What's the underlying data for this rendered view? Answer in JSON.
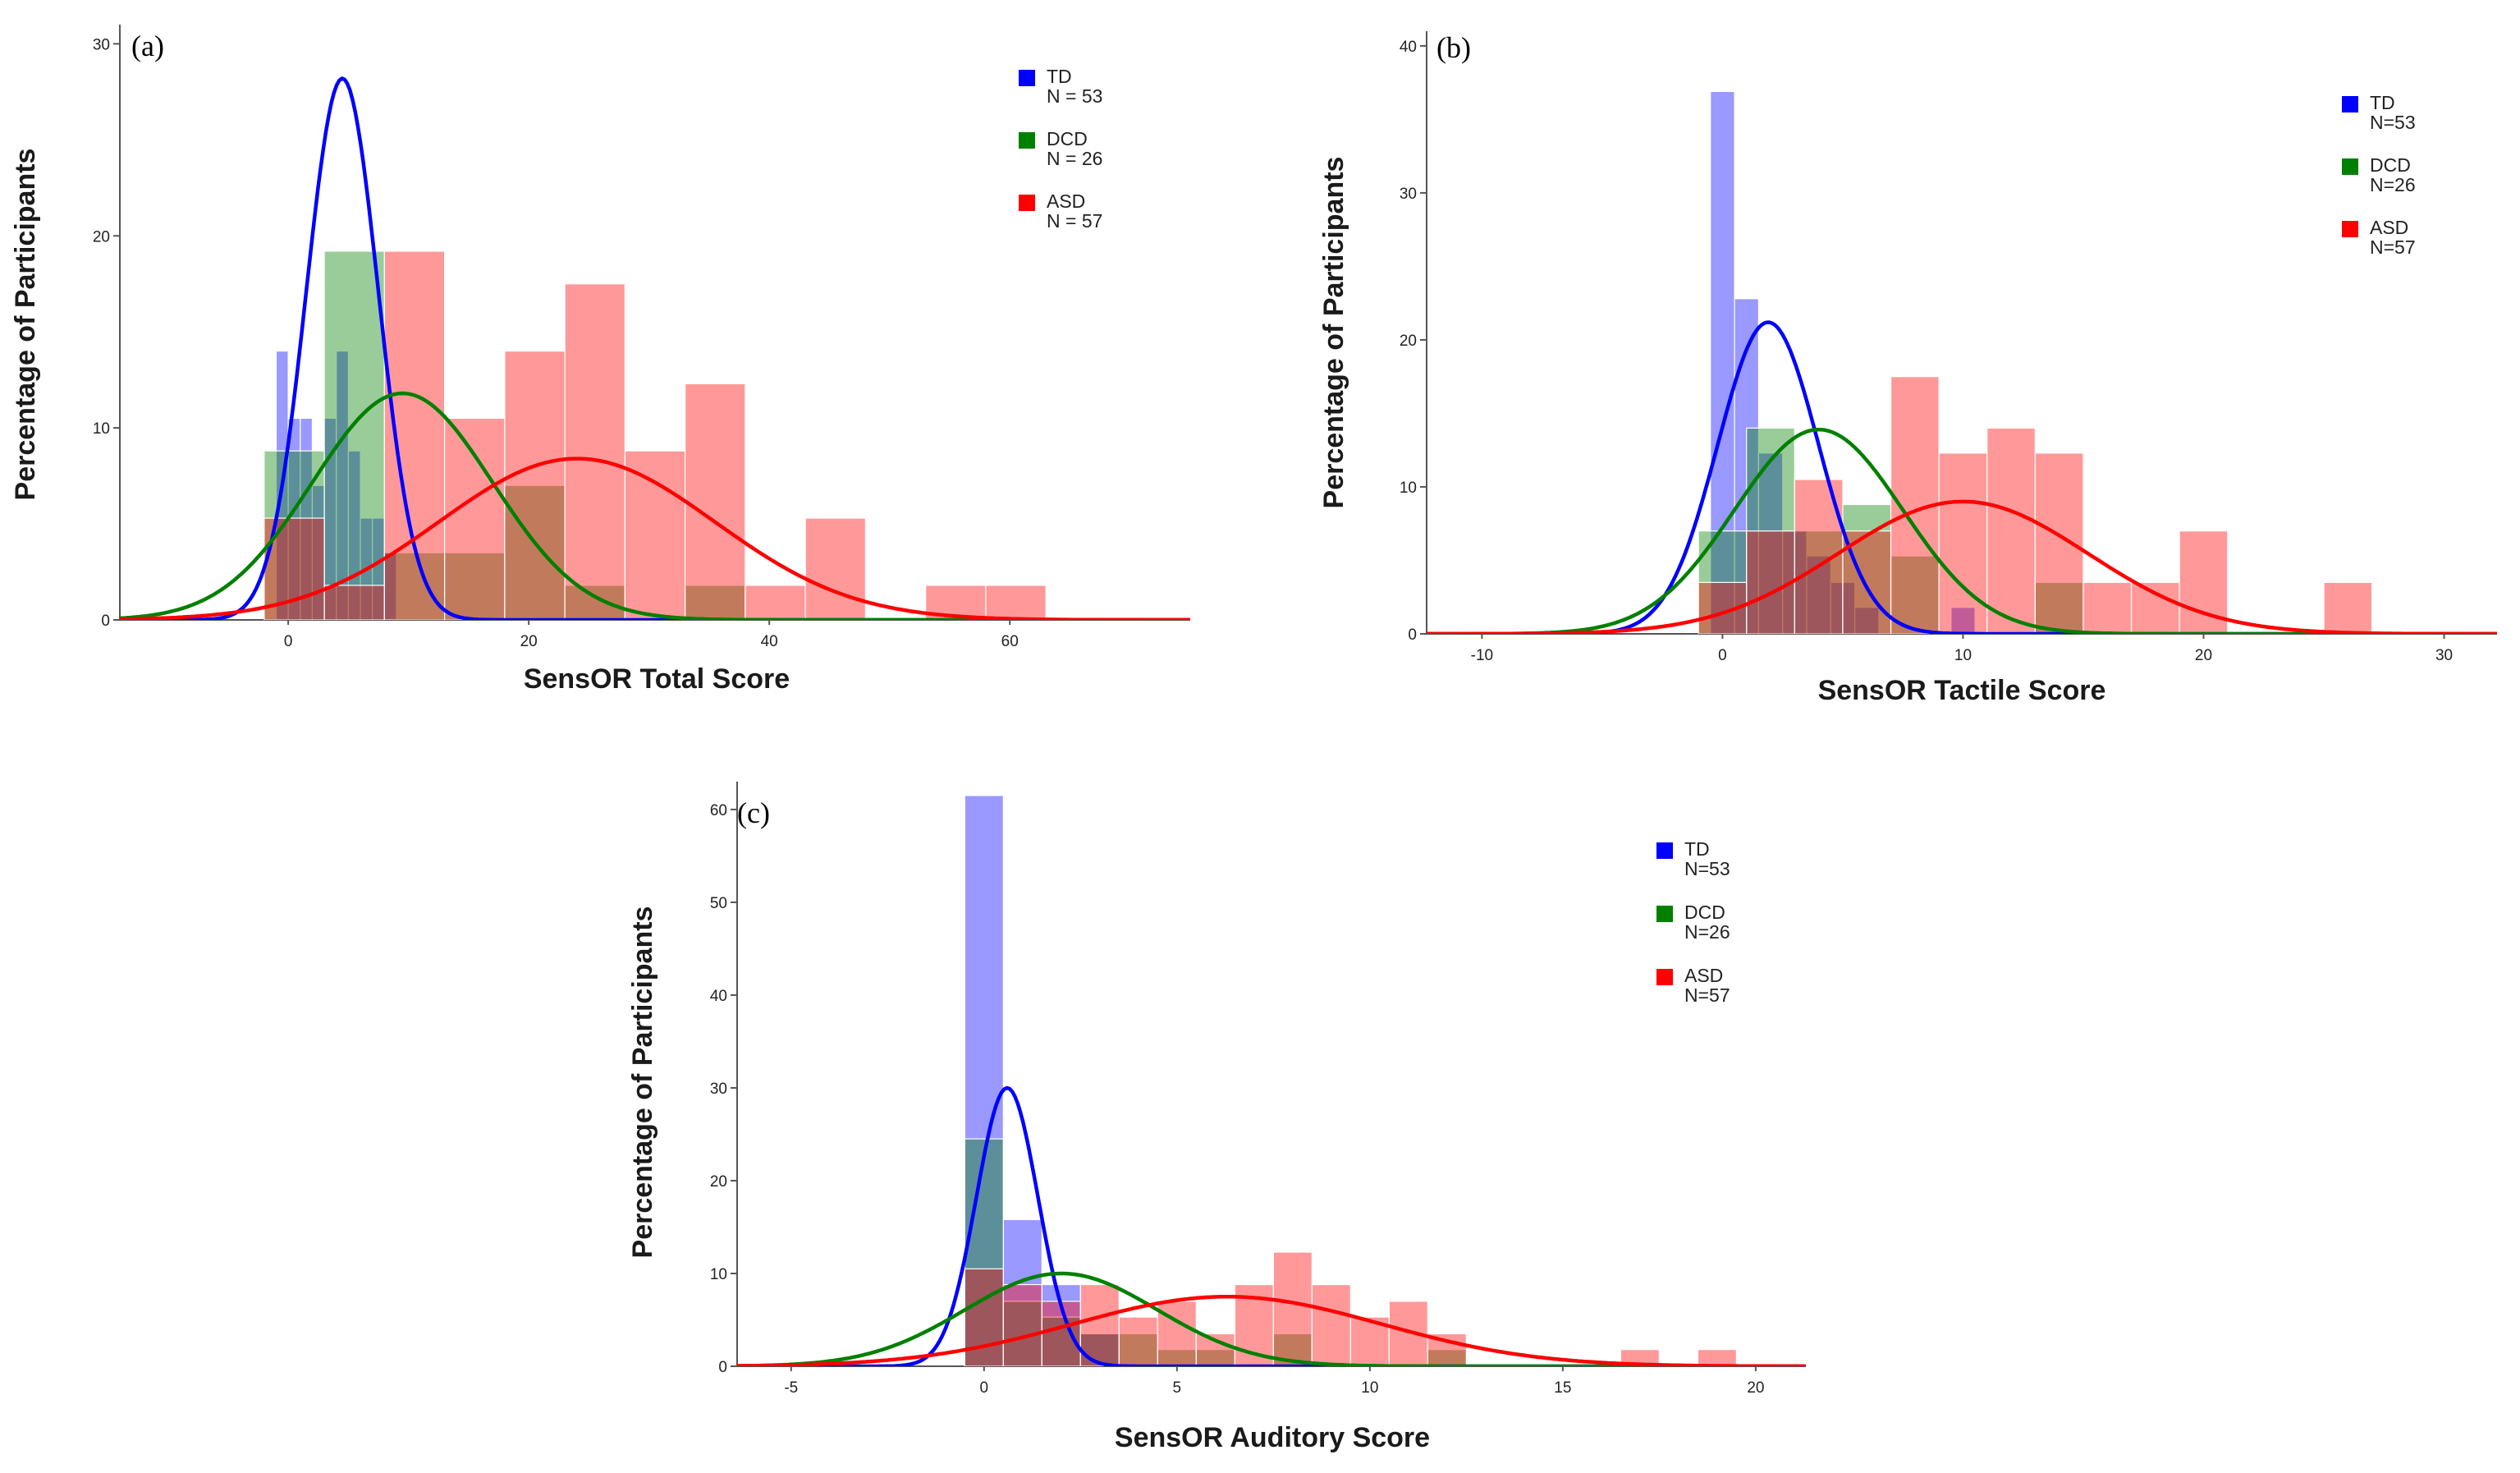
{
  "figure": {
    "colors": {
      "TD": "#0000ff",
      "DCD": "#008000",
      "ASD": "#ff0000"
    },
    "bar_opacity": 0.4
  },
  "chart_data": [
    {
      "type": "bar",
      "panel_label": "(a)",
      "title": "",
      "xlabel": "SensOR Total Score",
      "ylabel": "Percentage of Participants",
      "xlim": [
        -14,
        75
      ],
      "ylim": [
        0,
        31
      ],
      "xticks": [
        0,
        20,
        40,
        60
      ],
      "yticks": [
        0,
        10,
        20,
        30
      ],
      "legend_position": "top-right",
      "series": [
        {
          "name": "TD",
          "n_label": "N = 53",
          "bars": [
            [
              -1,
              1,
              14.0
            ],
            [
              0,
              1,
              10.5
            ],
            [
              1,
              1,
              10.5
            ],
            [
              2,
              1,
              7.0
            ],
            [
              3,
              1,
              10.5
            ],
            [
              4,
              1,
              14.0
            ],
            [
              5,
              1,
              8.8
            ],
            [
              6,
              1,
              5.3
            ],
            [
              7,
              1,
              5.3
            ],
            [
              8,
              1,
              3.5
            ]
          ],
          "curve": {
            "mean": 4.5,
            "sd": 3.0,
            "peak": 28.2
          }
        },
        {
          "name": "DCD",
          "n_label": "N = 26",
          "bars": [
            [
              -2,
              5,
              8.8
            ],
            [
              3,
              5,
              19.2
            ],
            [
              8,
              5,
              3.5
            ],
            [
              13,
              5,
              3.5
            ],
            [
              18,
              5,
              7.0
            ],
            [
              23,
              5,
              1.8
            ],
            [
              33,
              5,
              1.8
            ]
          ],
          "curve": {
            "mean": 9.5,
            "sd": 7.5,
            "peak": 11.8
          }
        },
        {
          "name": "ASD",
          "n_label": "N = 57",
          "bars": [
            [
              -2,
              5,
              5.3
            ],
            [
              3,
              5,
              1.8
            ],
            [
              8,
              5,
              19.2
            ],
            [
              13,
              5,
              10.5
            ],
            [
              18,
              5,
              14.0
            ],
            [
              23,
              5,
              17.5
            ],
            [
              28,
              5,
              8.8
            ],
            [
              33,
              5,
              12.3
            ],
            [
              38,
              5,
              1.8
            ],
            [
              43,
              5,
              5.3
            ],
            [
              53,
              5,
              1.8
            ],
            [
              58,
              5,
              1.8
            ]
          ],
          "curve": {
            "mean": 24.0,
            "sd": 11.5,
            "peak": 8.4
          }
        }
      ]
    },
    {
      "type": "bar",
      "panel_label": "(b)",
      "title": "",
      "xlabel": "SensOR Tactile Score",
      "ylabel": "Percentage of Participants",
      "xlim": [
        -12.3,
        32.2
      ],
      "ylim": [
        0,
        41
      ],
      "xticks": [
        -10,
        0,
        10,
        20,
        30
      ],
      "yticks": [
        0,
        10,
        20,
        30,
        40
      ],
      "legend_position": "top-right",
      "series": [
        {
          "name": "TD",
          "n_label": "N=53",
          "bars": [
            [
              -0.5,
              1,
              36.9
            ],
            [
              0.5,
              1,
              22.8
            ],
            [
              1.5,
              1,
              12.3
            ],
            [
              2.5,
              1,
              7.0
            ],
            [
              3.5,
              1,
              5.3
            ],
            [
              4.5,
              1,
              3.5
            ],
            [
              5.5,
              1,
              1.8
            ],
            [
              9.5,
              1,
              1.8
            ]
          ],
          "curve": {
            "mean": 1.9,
            "sd": 2.1,
            "peak": 21.2
          }
        },
        {
          "name": "DCD",
          "n_label": "N=26",
          "bars": [
            [
              -1,
              2,
              7.0
            ],
            [
              1,
              2,
              14.0
            ],
            [
              3,
              2,
              7.0
            ],
            [
              5,
              2,
              8.8
            ],
            [
              7,
              2,
              5.3
            ],
            [
              13,
              2,
              3.5
            ]
          ],
          "curve": {
            "mean": 4.0,
            "sd": 3.5,
            "peak": 13.9
          }
        },
        {
          "name": "ASD",
          "n_label": "N=57",
          "bars": [
            [
              -1,
              2,
              3.5
            ],
            [
              1,
              2,
              7.0
            ],
            [
              3,
              2,
              10.5
            ],
            [
              5,
              2,
              7.0
            ],
            [
              7,
              2,
              17.5
            ],
            [
              9,
              2,
              12.3
            ],
            [
              11,
              2,
              14.0
            ],
            [
              13,
              2,
              12.3
            ],
            [
              15,
              2,
              3.5
            ],
            [
              17,
              2,
              3.5
            ],
            [
              19,
              2,
              7.0
            ],
            [
              25,
              2,
              3.5
            ]
          ],
          "curve": {
            "mean": 10.0,
            "sd": 5.2,
            "peak": 9.0
          }
        }
      ]
    },
    {
      "type": "bar",
      "panel_label": "(c)",
      "title": "",
      "xlabel": "SensOR Auditory Score",
      "ylabel": "Percentage of Participants",
      "xlim": [
        -6.4,
        21.3
      ],
      "ylim": [
        0,
        63
      ],
      "xticks": [
        -5,
        0,
        5,
        10,
        15,
        20
      ],
      "yticks": [
        0,
        10,
        20,
        30,
        40,
        50,
        60
      ],
      "legend_position": "center-right",
      "series": [
        {
          "name": "TD",
          "n_label": "N=53",
          "bars": [
            [
              -0.5,
              1,
              61.5
            ],
            [
              0.5,
              1,
              15.8
            ],
            [
              1.5,
              1,
              8.8
            ],
            [
              2.5,
              1,
              3.5
            ]
          ],
          "curve": {
            "mean": 0.6,
            "sd": 0.8,
            "peak": 30.0
          }
        },
        {
          "name": "DCD",
          "n_label": "N=26",
          "bars": [
            [
              -0.5,
              1,
              24.5
            ],
            [
              0.5,
              1,
              7.0
            ],
            [
              1.5,
              1,
              5.3
            ],
            [
              2.5,
              1,
              3.5
            ],
            [
              3.5,
              1,
              3.5
            ],
            [
              4.5,
              1,
              1.8
            ],
            [
              5.5,
              1,
              1.8
            ],
            [
              7.5,
              1,
              3.5
            ],
            [
              11.5,
              1,
              1.8
            ]
          ],
          "curve": {
            "mean": 2.0,
            "sd": 2.5,
            "peak": 10.0
          }
        },
        {
          "name": "ASD",
          "n_label": "N=57",
          "bars": [
            [
              -0.5,
              1,
              10.5
            ],
            [
              0.5,
              1,
              8.8
            ],
            [
              1.5,
              1,
              7.0
            ],
            [
              2.5,
              1,
              8.8
            ],
            [
              3.5,
              1,
              5.3
            ],
            [
              4.5,
              1,
              7.0
            ],
            [
              5.5,
              1,
              3.5
            ],
            [
              6.5,
              1,
              8.8
            ],
            [
              7.5,
              1,
              12.3
            ],
            [
              8.5,
              1,
              8.8
            ],
            [
              9.5,
              1,
              5.3
            ],
            [
              10.5,
              1,
              7.0
            ],
            [
              11.5,
              1,
              3.5
            ],
            [
              16.5,
              1,
              1.8
            ],
            [
              18.5,
              1,
              1.8
            ]
          ],
          "curve": {
            "mean": 6.3,
            "sd": 4.0,
            "peak": 7.5
          }
        }
      ]
    }
  ]
}
